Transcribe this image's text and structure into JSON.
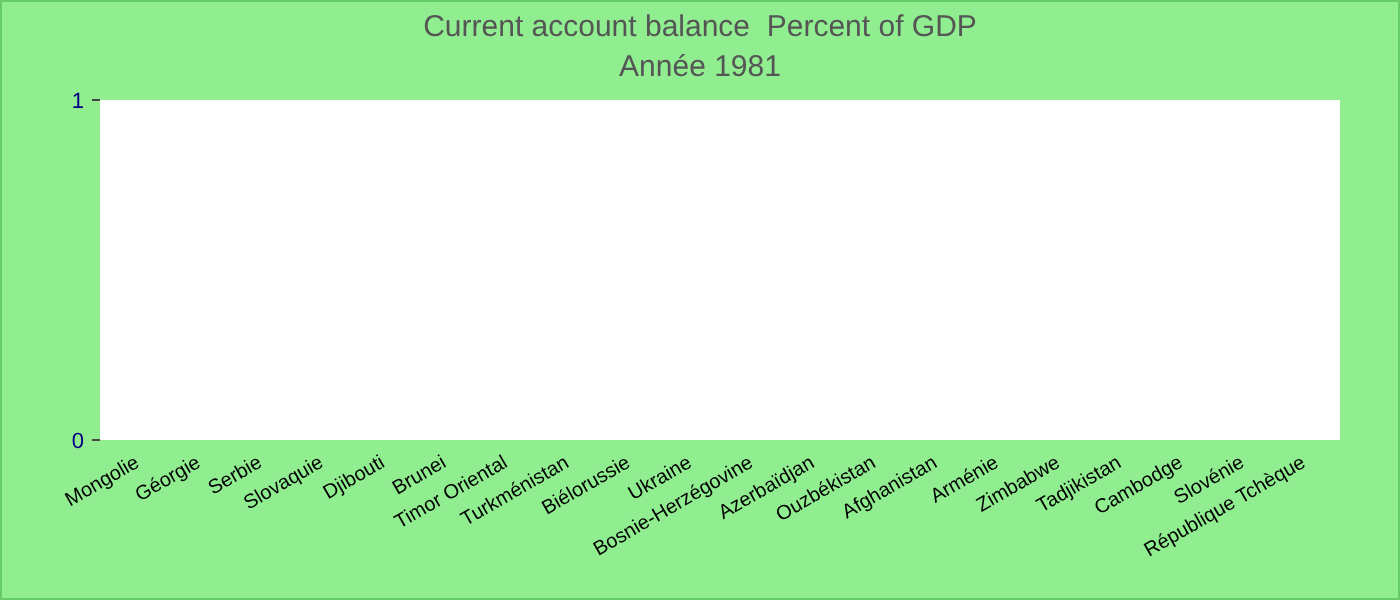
{
  "chart_data": {
    "type": "bar",
    "title": "Current account balance  Percent of GDP",
    "subtitle": "Année 1981",
    "categories": [
      "Mongolie",
      "Géorgie",
      "Serbie",
      "Slovaquie",
      "Djibouti",
      "Brunei",
      "Timor Oriental",
      "Turkménistan",
      "Biélorussie",
      "Ukraine",
      "Bosnie-Herzégovine",
      "Azerbaïdjan",
      "Ouzbékistan",
      "Afghanistan",
      "Arménie",
      "Zimbabwe",
      "Tadjikistan",
      "Cambodge",
      "Slovénie",
      "République Tchèque"
    ],
    "values": [
      null,
      null,
      null,
      null,
      null,
      null,
      null,
      null,
      null,
      null,
      null,
      null,
      null,
      null,
      null,
      null,
      null,
      null,
      null,
      null
    ],
    "ylim": [
      0,
      1
    ],
    "yticks": [
      0,
      1
    ],
    "grid": false
  }
}
